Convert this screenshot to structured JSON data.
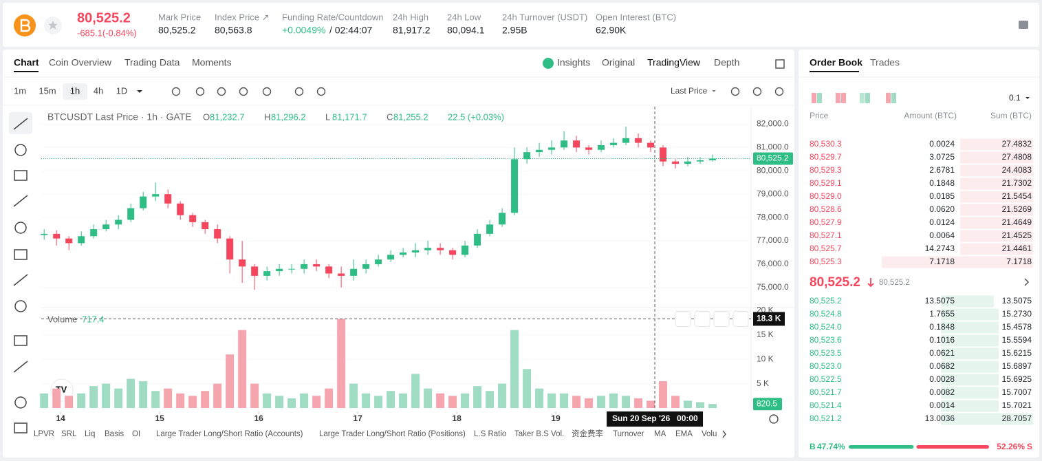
{
  "header": {
    "price": "80,525.2",
    "change": "-685.1(-0.84%)",
    "stats": [
      {
        "label": "Mark Price",
        "value": "80,525.2"
      },
      {
        "label": "Index Price ↗",
        "value": "80,563.8"
      },
      {
        "label": "Funding Rate/Countdown",
        "value": "+0.0049%",
        "countdown": "/ 02:44:07"
      },
      {
        "label": "24h High",
        "value": "81,917.2"
      },
      {
        "label": "24h Low",
        "value": "80,094.1"
      },
      {
        "label": "24h Turnover (USDT)",
        "value": "2.95B"
      },
      {
        "label": "Open Interest (BTC)",
        "value": "62.90K"
      }
    ]
  },
  "tabs": [
    "Chart",
    "Coin Overview",
    "Trading Data",
    "Moments"
  ],
  "views": [
    "Insights",
    "Original",
    "TradingView",
    "Depth"
  ],
  "intervals": [
    "1m",
    "15m",
    "1h",
    "4h",
    "1D"
  ],
  "price_source": "Last Price",
  "chart_data": {
    "type": "candlestick",
    "title": "BTCUSDT Last Price · 1h · GATE",
    "legend": [
      {
        "key": "O",
        "value": "81,232.7"
      },
      {
        "key": "H",
        "value": "81,296.2"
      },
      {
        "key": "L",
        "value": "81,171.7"
      },
      {
        "key": "C",
        "value": "81,255.2"
      }
    ],
    "change": "22.5 (+0.03%)",
    "x": [
      -4,
      -1,
      2,
      5,
      8,
      11,
      14,
      17,
      20,
      23,
      26,
      29,
      32,
      35,
      38,
      41,
      44,
      47,
      50,
      53,
      56,
      59,
      62,
      65,
      68,
      71,
      74,
      77,
      80,
      83,
      86,
      89,
      92,
      95,
      98,
      101,
      104,
      107,
      110,
      113,
      116,
      119,
      122,
      125,
      128,
      131,
      134,
      137,
      140,
      143,
      146,
      149,
      152,
      155,
      158
    ],
    "open": [
      77250,
      77300,
      77100,
      76900,
      77200,
      77500,
      77700,
      77900,
      78400,
      78900,
      79000,
      78600,
      78100,
      77800,
      77500,
      77100,
      76200,
      75900,
      75500,
      75700,
      75800,
      75800,
      76000,
      75900,
      75600,
      75500,
      75800,
      76000,
      76200,
      76400,
      76500,
      76600,
      76700,
      76600,
      76400,
      76800,
      77300,
      77700,
      78200,
      80500,
      80800,
      80900,
      81000,
      81300,
      81000,
      80900,
      81100,
      81200,
      81400,
      81200,
      81000,
      80400,
      80300,
      80400,
      80450
    ],
    "high": [
      77500,
      77450,
      77200,
      77400,
      77700,
      77900,
      78100,
      78600,
      79100,
      79500,
      79200,
      78700,
      78200,
      77900,
      77700,
      77200,
      77000,
      76000,
      75900,
      76000,
      76000,
      76200,
      76200,
      76000,
      75900,
      76200,
      76200,
      76400,
      76600,
      76700,
      76900,
      77000,
      76900,
      76700,
      77000,
      77500,
      77900,
      78400,
      81000,
      81000,
      81200,
      81300,
      81700,
      81500,
      81100,
      81300,
      81400,
      81900,
      81600,
      81300,
      81100,
      80500,
      80600,
      80600,
      80700
    ],
    "low": [
      77050,
      76800,
      76600,
      76800,
      77100,
      77400,
      77500,
      77800,
      78300,
      78700,
      78400,
      77900,
      77600,
      77300,
      76900,
      75600,
      75200,
      74900,
      75300,
      75500,
      75600,
      75600,
      75700,
      75400,
      75000,
      75300,
      75600,
      75900,
      76100,
      76300,
      76300,
      76400,
      76400,
      76200,
      76300,
      76700,
      77200,
      77600,
      78100,
      80300,
      80600,
      80700,
      80900,
      80800,
      80700,
      80800,
      81000,
      81100,
      81000,
      80800,
      80200,
      80100,
      80200,
      80300,
      80400
    ],
    "close": [
      77300,
      77100,
      76900,
      77200,
      77500,
      77700,
      77900,
      78400,
      78900,
      79000,
      78600,
      78100,
      77800,
      77500,
      77100,
      76200,
      75900,
      75500,
      75700,
      75800,
      75800,
      76000,
      75900,
      75600,
      75500,
      75800,
      76000,
      76200,
      76400,
      76500,
      76600,
      76700,
      76600,
      76400,
      76800,
      77300,
      77700,
      78200,
      80500,
      80800,
      80900,
      81000,
      81300,
      81000,
      80900,
      81100,
      81200,
      81400,
      81200,
      81000,
      80400,
      80300,
      80400,
      80450,
      80525.2
    ],
    "xlim": [
      -4.7,
      167
    ],
    "xticks": [
      {
        "value": 0,
        "label": "14"
      },
      {
        "value": 24,
        "label": "15"
      },
      {
        "value": 48,
        "label": "16"
      },
      {
        "value": 72,
        "label": "17"
      },
      {
        "value": 96,
        "label": "18"
      },
      {
        "value": 120,
        "label": "19"
      }
    ],
    "ylim": [
      74200,
      82750
    ],
    "yticks": [
      {
        "value": 82000,
        "label": "82,000.0"
      },
      {
        "value": 81000,
        "label": "81,000.0"
      },
      {
        "value": 80000,
        "label": "80,000.0"
      },
      {
        "value": 79000,
        "label": "79,000.0"
      },
      {
        "value": 78000,
        "label": "78,000.0"
      },
      {
        "value": 77000,
        "label": "77,000.0"
      },
      {
        "value": 76000,
        "label": "76,000.0"
      },
      {
        "value": 75000,
        "label": "75,000.0"
      }
    ],
    "last_price": {
      "value": 80525.2,
      "label": "80,525.2"
    },
    "up_color": "#2ebd85",
    "down_color": "#f6465d",
    "up_volume_color": "#9fdcc3",
    "down_volume_color": "#f5a5ae",
    "volume": {
      "title": "Volume",
      "value_label": "717.4",
      "values": [
        3000,
        4000,
        2500,
        3000,
        4500,
        5000,
        4000,
        6000,
        5500,
        3500,
        4000,
        3000,
        2500,
        3500,
        5000,
        11000,
        16000,
        5000,
        3000,
        2500,
        2000,
        3000,
        2500,
        4000,
        18300,
        5000,
        3000,
        2500,
        3500,
        3000,
        7000,
        4000,
        3000,
        2500,
        3000,
        4500,
        3500,
        5000,
        16000,
        8000,
        4000,
        3000,
        3000,
        2500,
        2000,
        2500,
        3000,
        2500,
        2000,
        1500,
        5500,
        2500,
        1500,
        1200,
        820.5
      ],
      "ylim": [
        0,
        20200
      ],
      "yticks": [
        {
          "value": 5000,
          "label": "5 K"
        },
        {
          "value": 10000,
          "label": "10 K"
        },
        {
          "value": 15000,
          "label": "15 K"
        },
        {
          "value": 20000,
          "label": "20 K"
        }
      ]
    },
    "crosshair": {
      "x": 144,
      "date": "Sun 20 Sep '26",
      "time": "00:00",
      "y": {
        "value": 18300,
        "label": "18.3 K"
      }
    }
  },
  "indicators": [
    "LPVR",
    "SRL",
    "Liq",
    "Basis",
    "OI",
    "Large Trader Long/Short Ratio (Accounts)",
    "Large Trader Long/Short Ratio (Positions)",
    "L.S Ratio",
    "Taker B.S Vol.",
    "资金费率",
    "Turnover",
    "MA",
    "EMA",
    "Volu"
  ],
  "order_book": {
    "tabs": [
      "Order Book",
      "Trades"
    ],
    "precision": "0.1",
    "columns": [
      "Price",
      "Amount (BTC)",
      "Sum (BTC)"
    ],
    "asks": [
      [
        "80,530.3",
        "0.0024",
        "27.4832"
      ],
      [
        "80,529.7",
        "3.0725",
        "27.4808"
      ],
      [
        "80,529.3",
        "2.6781",
        "24.4083"
      ],
      [
        "80,529.1",
        "0.1848",
        "21.7302"
      ],
      [
        "80,529.0",
        "0.0185",
        "21.5454"
      ],
      [
        "80,528.6",
        "0.0620",
        "21.5269"
      ],
      [
        "80,527.9",
        "0.0124",
        "21.4649"
      ],
      [
        "80,527.1",
        "0.0064",
        "21.4525"
      ],
      [
        "80,525.7",
        "14.2743",
        "21.4461"
      ],
      [
        "80,525.3",
        "7.1718",
        "7.1718"
      ]
    ],
    "mid": {
      "price": "80,525.2",
      "mark": "80,525.2"
    },
    "bids": [
      [
        "80,525.2",
        "13.5075",
        "13.5075"
      ],
      [
        "80,524.8",
        "1.7655",
        "15.2730"
      ],
      [
        "80,524.0",
        "0.1848",
        "15.4578"
      ],
      [
        "80,523.6",
        "0.1016",
        "15.5594"
      ],
      [
        "80,523.5",
        "0.0621",
        "15.6215"
      ],
      [
        "80,523.0",
        "0.0682",
        "15.6897"
      ],
      [
        "80,522.5",
        "0.0028",
        "15.6925"
      ],
      [
        "80,521.7",
        "0.0082",
        "15.7007"
      ],
      [
        "80,521.4",
        "0.0014",
        "15.7021"
      ],
      [
        "80,521.2",
        "13.0036",
        "28.7057"
      ]
    ],
    "ratio": {
      "buy": "B",
      "sell": "S",
      "buy_pct": {
        "value": 47.74,
        "label": "47.74%"
      },
      "sell_pct": {
        "value": 52.26,
        "label": "52.26%"
      }
    }
  }
}
